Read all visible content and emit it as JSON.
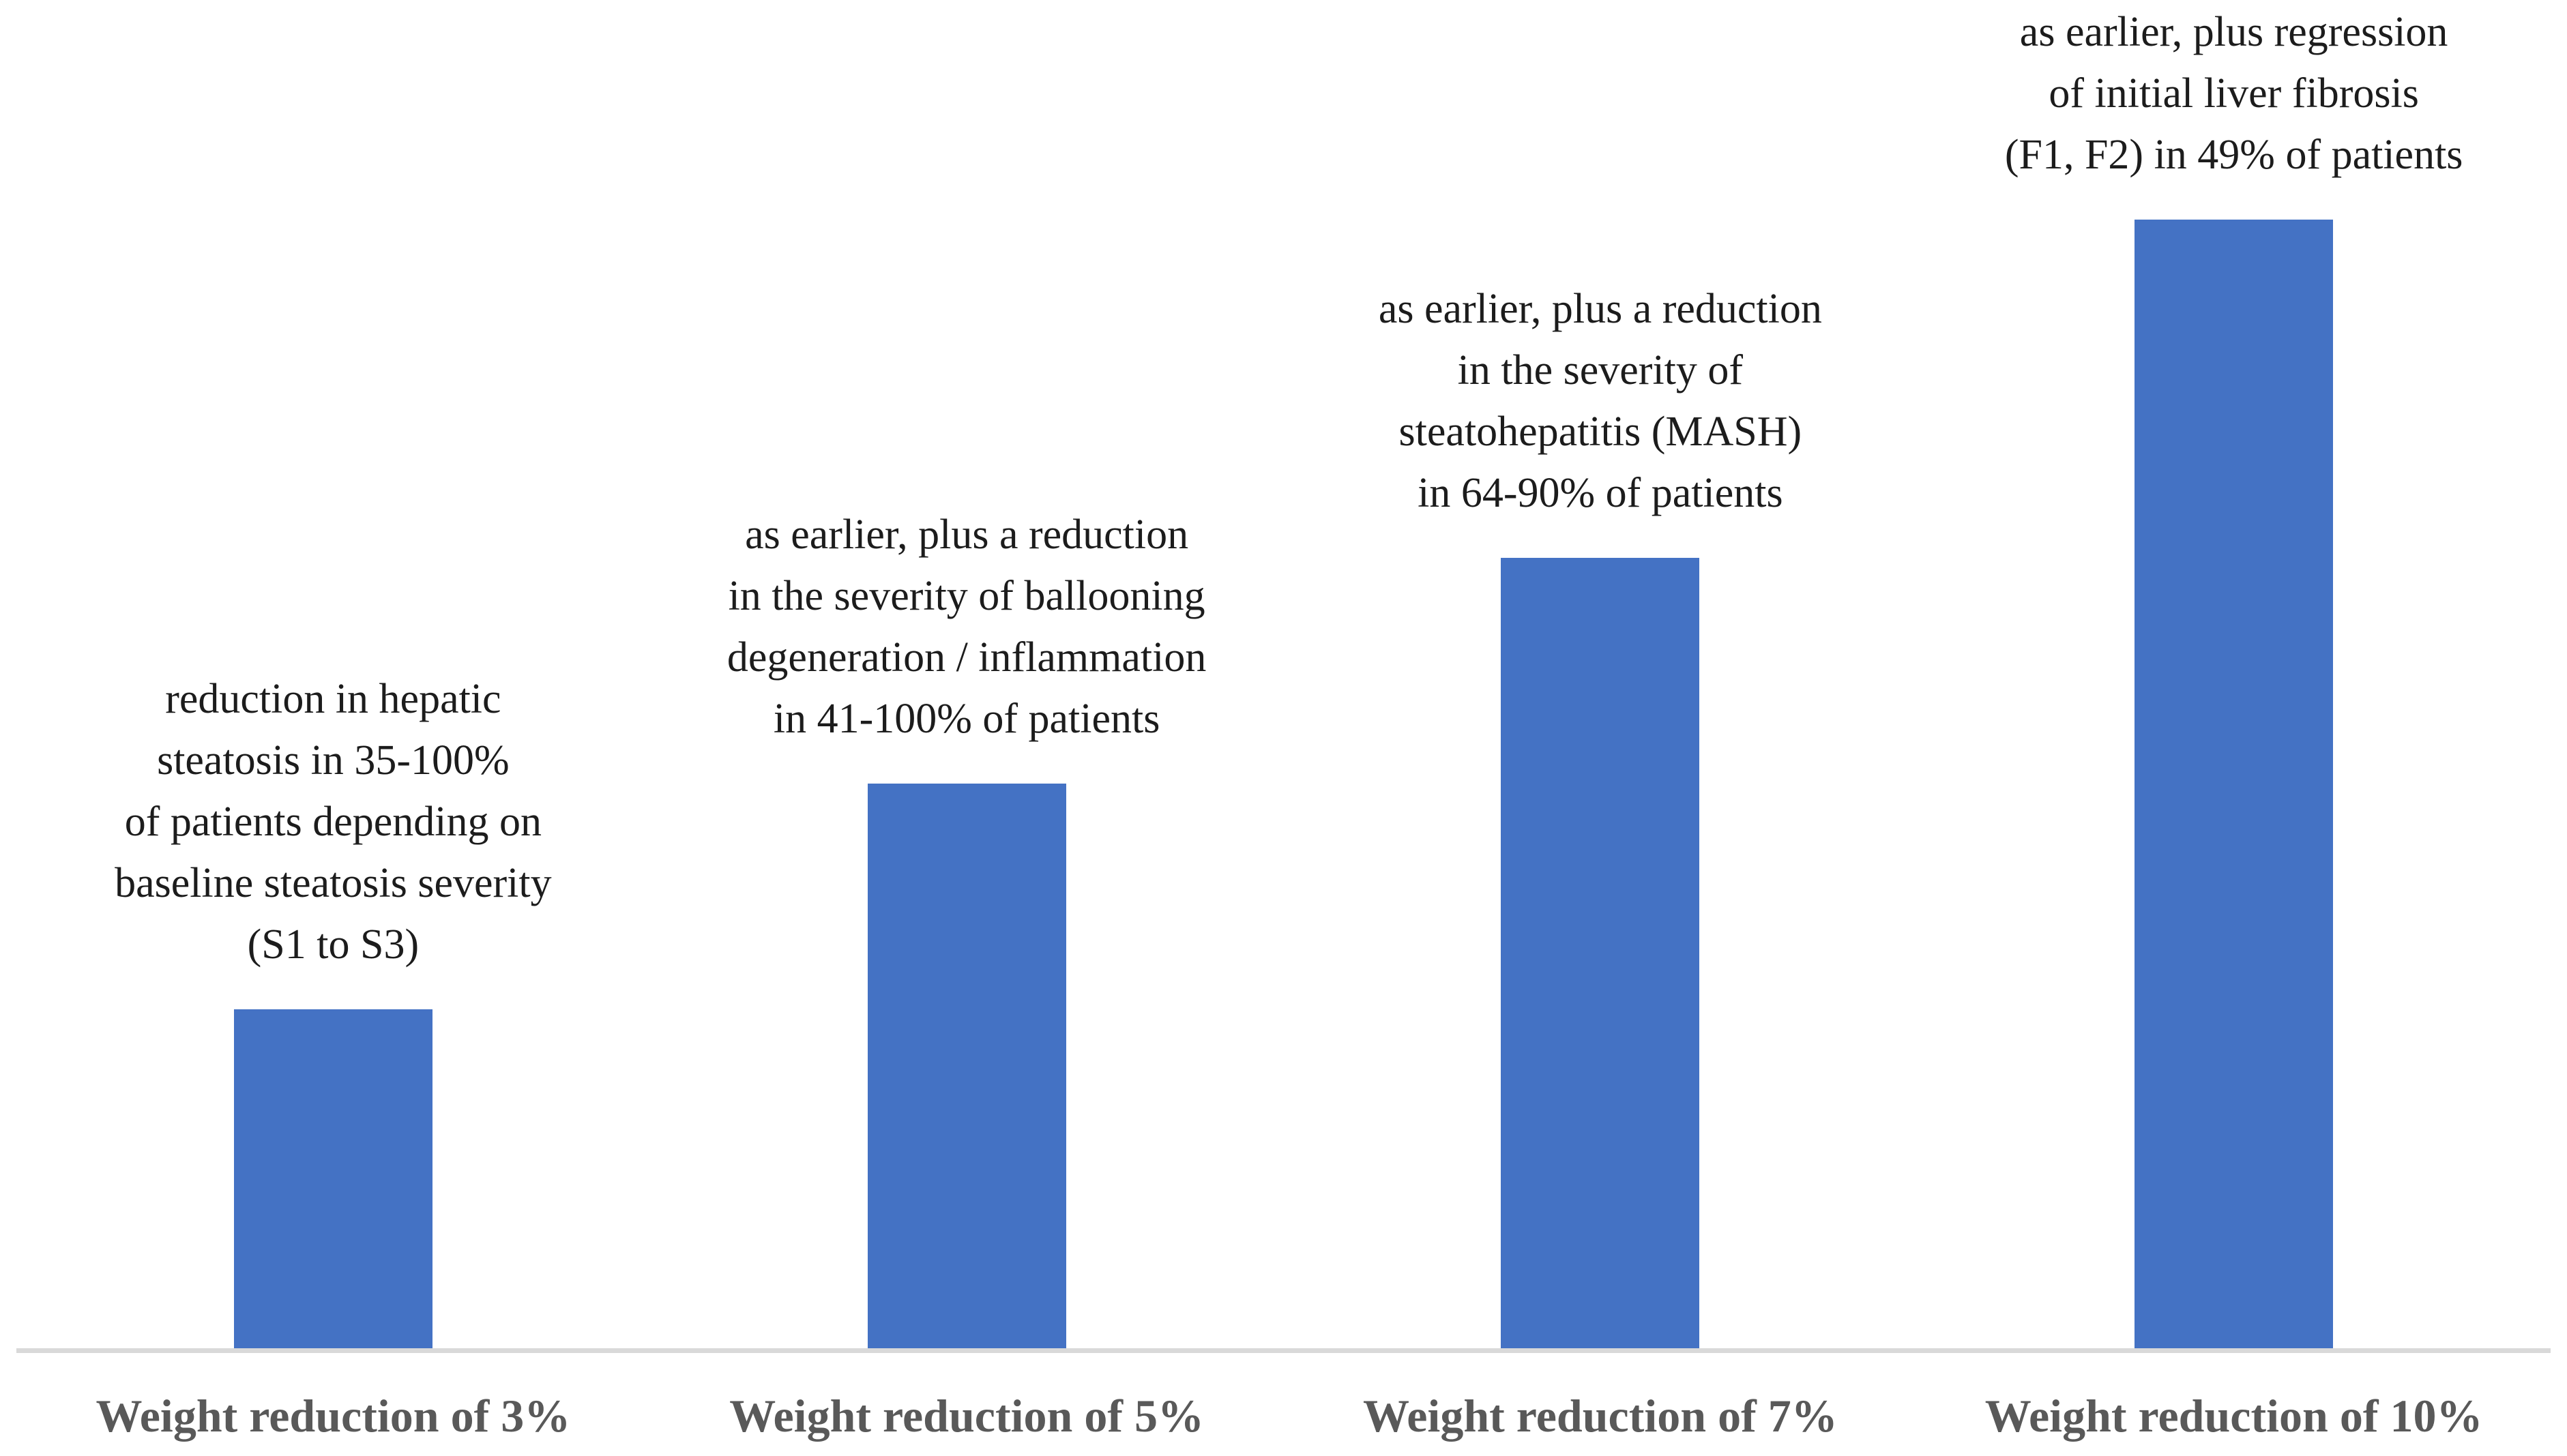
{
  "chart_data": {
    "type": "bar",
    "categories": [
      "Weight reduction of 3%",
      "Weight reduction of 5%",
      "Weight reduction of 7%",
      "Weight reduction of 10%"
    ],
    "values": [
      3,
      5,
      7,
      10
    ],
    "annotations": [
      "reduction in hepatic\nsteatosis in 35-100%\nof patients depending on\nbaseline steatosis severity\n(S1 to S3)",
      "as earlier, plus a reduction\nin the severity of ballooning\ndegeneration / inflammation\nin 41-100% of patients",
      "as earlier, plus a reduction\nin the severity of\nsteatohepatitis (MASH)\nin 64-90% of patients",
      "as earlier, plus regression\nof initial liver fibrosis\n(F1, F2) in 49% of patients"
    ],
    "title": "",
    "xlabel": "",
    "ylabel": "",
    "ylim": [
      0,
      12
    ],
    "grid": false,
    "legend": false,
    "y_axis_visible": false,
    "colors": {
      "bar": "#4472C4",
      "axis_line": "#D9D9D9",
      "axis_label": "#595959",
      "annotation_text": "#1C1C1C"
    }
  }
}
